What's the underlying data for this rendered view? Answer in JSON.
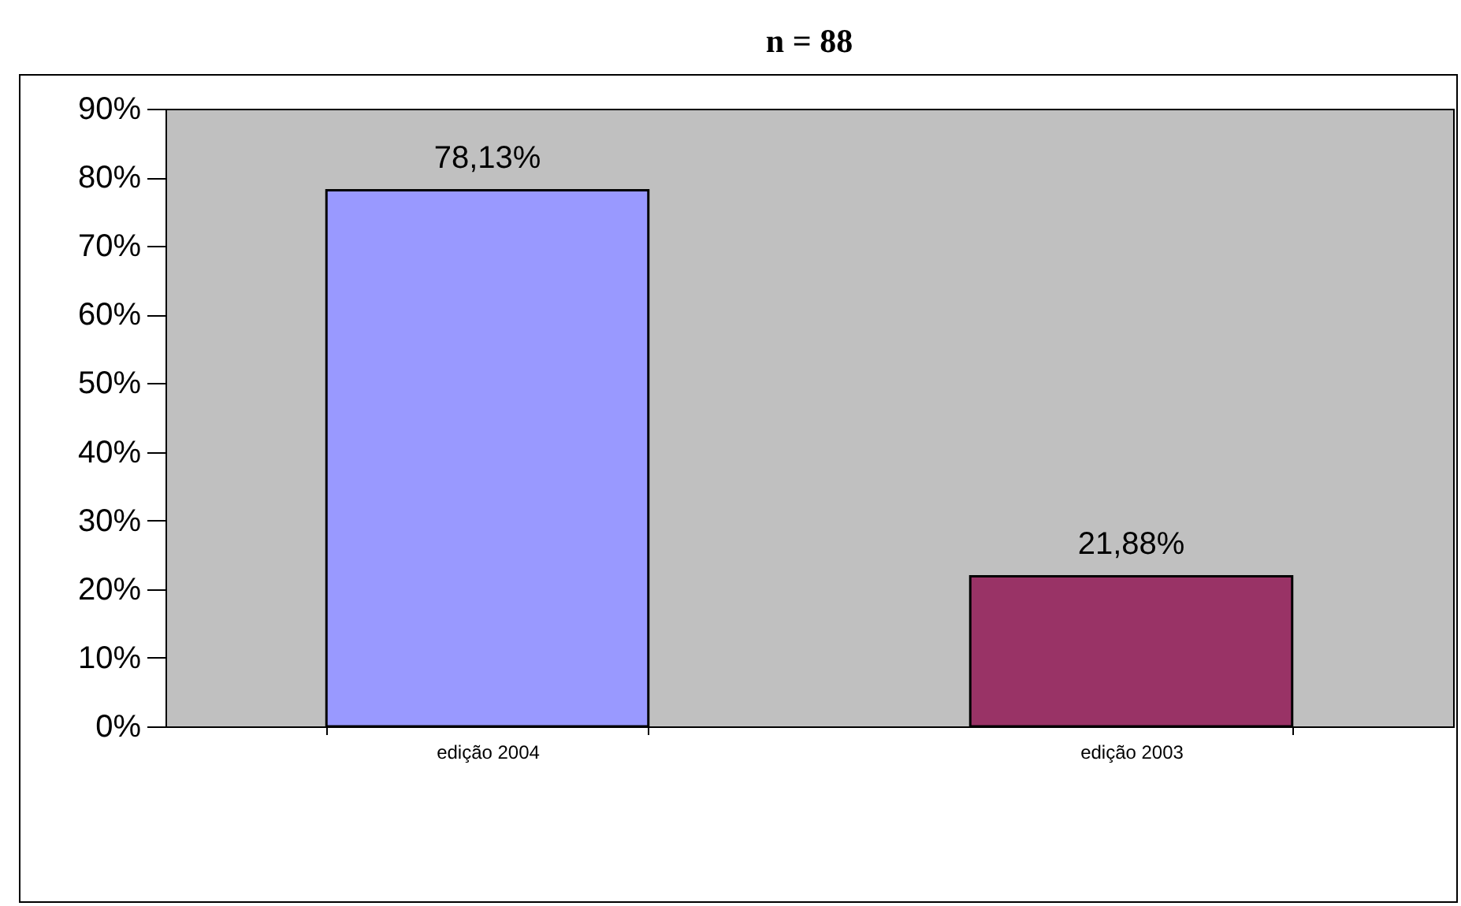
{
  "chart_data": {
    "type": "bar",
    "title": "n = 88",
    "categories": [
      "edição 2004",
      "edição 2003"
    ],
    "values": [
      78.13,
      21.88
    ],
    "colors": [
      "#9999ff",
      "#993366"
    ],
    "value_labels": [
      "78,13%",
      "21,88%"
    ],
    "ylim": [
      0,
      90
    ],
    "yticks": [
      {
        "value": 0,
        "label": "0%"
      },
      {
        "value": 10,
        "label": "10%"
      },
      {
        "value": 20,
        "label": "20%"
      },
      {
        "value": 30,
        "label": "30%"
      },
      {
        "value": 40,
        "label": "40%"
      },
      {
        "value": 50,
        "label": "50%"
      },
      {
        "value": 60,
        "label": "60%"
      },
      {
        "value": 70,
        "label": "70%"
      },
      {
        "value": 80,
        "label": "80%"
      },
      {
        "value": 90,
        "label": "90%"
      }
    ],
    "grid": false
  }
}
